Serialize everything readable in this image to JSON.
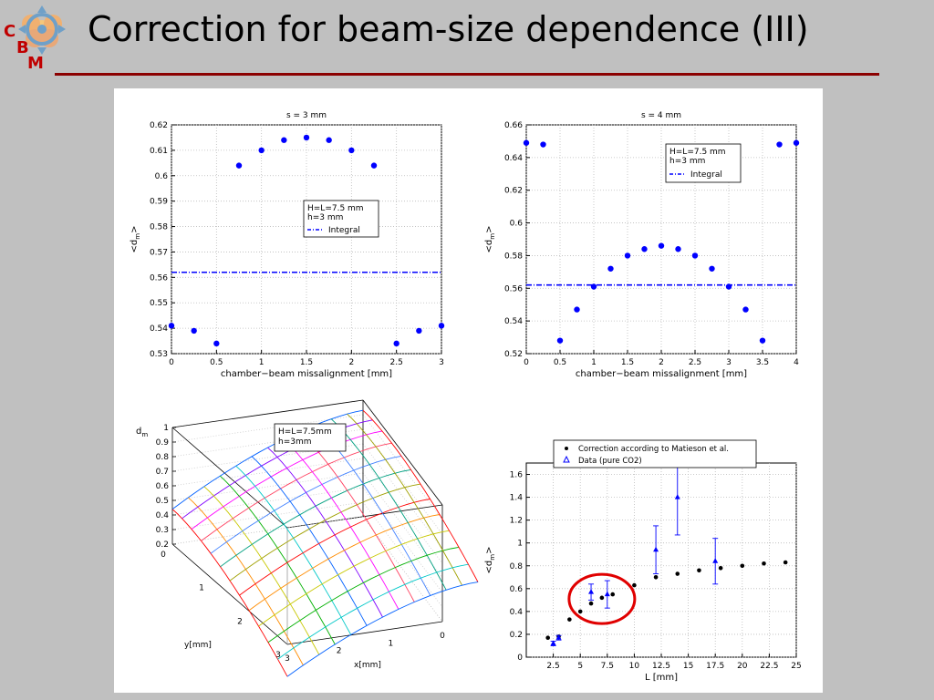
{
  "slide": {
    "title": "Correction for beam-size dependence (III)",
    "logo_text": {
      "c": "C",
      "b": "B",
      "m": "M"
    },
    "rule_color": "#8b0000",
    "bg_color": "#c0c0c0"
  },
  "chart_data": [
    {
      "type": "scatter",
      "title": "s = 3 mm",
      "xlabel": "chamber−beam missalignment [mm]",
      "ylabel": "<dm>",
      "xlim": [
        0,
        3
      ],
      "ylim": [
        0.53,
        0.62
      ],
      "xticks": [
        "0",
        "0.5",
        "1",
        "1.5",
        "2",
        "2.5",
        "3"
      ],
      "yticks": [
        "0.53",
        "0.54",
        "0.55",
        "0.56",
        "0.57",
        "0.58",
        "0.59",
        "0.6",
        "0.61",
        "0.62"
      ],
      "grid": true,
      "points": {
        "x": [
          0,
          0.25,
          0.5,
          0.75,
          1,
          1.25,
          1.5,
          1.75,
          2,
          2.25,
          2.5,
          2.75,
          3
        ],
        "y": [
          0.541,
          0.539,
          0.534,
          0.604,
          0.61,
          0.614,
          0.615,
          0.614,
          0.61,
          0.604,
          0.534,
          0.539,
          0.541
        ]
      },
      "integral": 0.562,
      "legend": {
        "lines": [
          "H=L=7.5 mm",
          "h=3 mm"
        ],
        "integral_label": "Integral"
      },
      "color": "#0000ff"
    },
    {
      "type": "scatter",
      "title": "s = 4 mm",
      "xlabel": "chamber−beam missalignment [mm]",
      "ylabel": "<dm>",
      "xlim": [
        0,
        4
      ],
      "ylim": [
        0.52,
        0.66
      ],
      "xticks": [
        "0",
        "0.5",
        "1",
        "1.5",
        "2",
        "2.5",
        "3",
        "3.5",
        "4"
      ],
      "yticks": [
        "0.52",
        "0.54",
        "0.56",
        "0.58",
        "0.6",
        "0.62",
        "0.64",
        "0.66"
      ],
      "grid": true,
      "points": {
        "x": [
          0,
          0.25,
          0.5,
          0.75,
          1,
          1.25,
          1.5,
          1.75,
          2,
          2.25,
          2.5,
          2.75,
          3,
          3.25,
          3.5,
          3.75,
          4
        ],
        "y": [
          0.649,
          0.648,
          0.528,
          0.547,
          0.561,
          0.572,
          0.58,
          0.584,
          0.586,
          0.584,
          0.58,
          0.572,
          0.561,
          0.547,
          0.528,
          0.648,
          0.649
        ]
      },
      "integral": 0.562,
      "legend": {
        "lines": [
          "H=L=7.5 mm",
          "h=3 mm"
        ],
        "integral_label": "Integral"
      },
      "color": "#0000ff"
    },
    {
      "type": "surface",
      "zlabel": "dm",
      "xlabel": "x[mm]",
      "ylabel": "y[mm]",
      "zticks": [
        "0.2",
        "0.3",
        "0.4",
        "0.5",
        "0.6",
        "0.7",
        "0.8",
        "0.9",
        "1"
      ],
      "xticks": [
        "3",
        "2",
        "1",
        "0"
      ],
      "yticks": [
        "0",
        "1",
        "2",
        "3"
      ],
      "legend": {
        "lines": [
          "H=L=7.5mm",
          "h=3mm"
        ]
      }
    },
    {
      "type": "scatter",
      "xlabel": "L [mm]",
      "ylabel": "<dm>",
      "xlim": [
        0,
        25
      ],
      "ylim": [
        0,
        1.7
      ],
      "xticks": [
        "2.5",
        "5",
        "7.5",
        "10",
        "12.5",
        "15",
        "17.5",
        "20",
        "22.5",
        "25"
      ],
      "yticks": [
        "0",
        "0.2",
        "0.4",
        "0.6",
        "0.8",
        "1",
        "1.2",
        "1.4",
        "1.6"
      ],
      "grid": true,
      "series": [
        {
          "name": "Correction according to Matieson et al.",
          "marker": "dot",
          "color": "#000000",
          "x": [
            2,
            3,
            4,
            5,
            6,
            7,
            8,
            10,
            12,
            14,
            16,
            18,
            20,
            22,
            24
          ],
          "y": [
            0.17,
            0.18,
            0.33,
            0.4,
            0.47,
            0.52,
            0.55,
            0.63,
            0.7,
            0.73,
            0.76,
            0.78,
            0.8,
            0.82,
            0.83
          ]
        },
        {
          "name": "Data (pure CO2)",
          "marker": "triangle",
          "color": "#0000ff",
          "x": [
            2.5,
            3,
            6,
            7.5,
            12,
            14,
            17.5
          ],
          "y": [
            0.12,
            0.17,
            0.57,
            0.55,
            0.94,
            1.4,
            0.84
          ],
          "err": [
            0.02,
            0.02,
            0.07,
            0.12,
            0.21,
            0.33,
            0.2
          ]
        }
      ],
      "annotation": {
        "shape": "ellipse",
        "color": "#e00000",
        "cx": 7,
        "cy": 0.51
      }
    }
  ]
}
